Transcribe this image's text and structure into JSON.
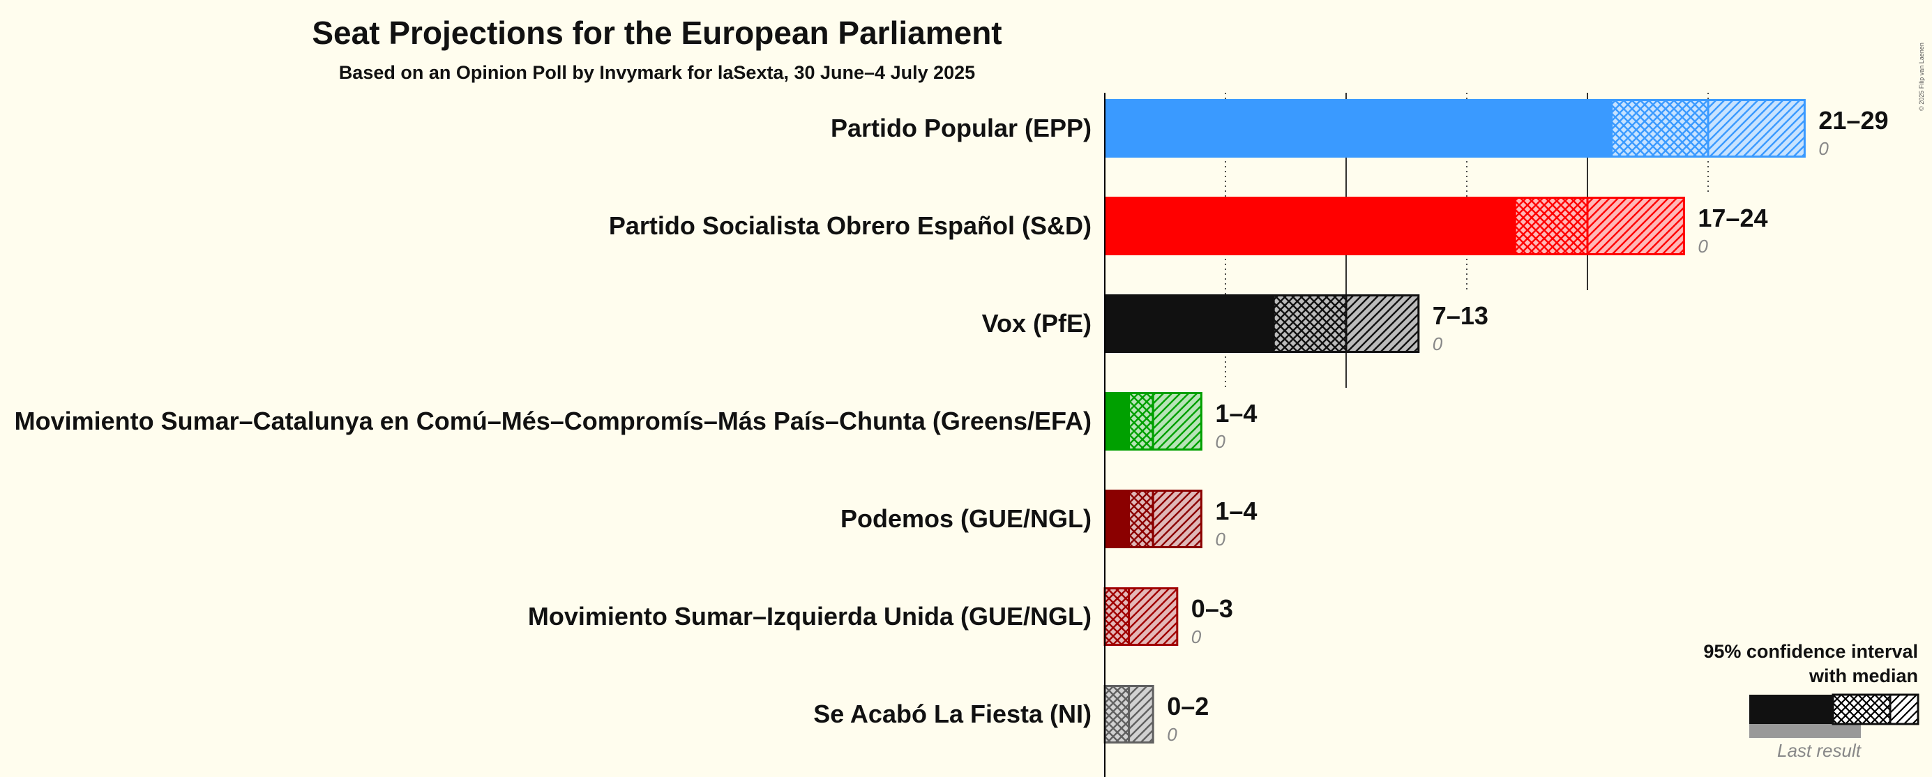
{
  "chart_data": {
    "type": "bar",
    "orientation": "horizontal",
    "title": "Seat Projections for the European Parliament",
    "subtitle": "Based on an Opinion Poll by Invymark for laSexta, 30 June–4 July 2025",
    "categories": [
      "Partido Popular (EPP)",
      "Partido Socialista Obrero Español (S&D)",
      "Vox (PfE)",
      "Movimiento Sumar–Catalunya en Comú–Més–Compromís–Más País–Chunta (Greens/EFA)",
      "Podemos (GUE/NGL)",
      "Movimiento Sumar–Izquierda Unida (GUE/NGL)",
      "Se Acabó La Fiesta (NI)"
    ],
    "series": [
      {
        "party": "Partido Popular (EPP)",
        "low": 21,
        "median": 25,
        "high": 29,
        "range_label": "21–29",
        "last_result": 0,
        "last_label": "0",
        "color": "#3A9AFF"
      },
      {
        "party": "Partido Socialista Obrero Español (S&D)",
        "low": 17,
        "median": 20,
        "high": 24,
        "range_label": "17–24",
        "last_result": 0,
        "last_label": "0",
        "color": "#FF0000"
      },
      {
        "party": "Vox (PfE)",
        "low": 7,
        "median": 10,
        "high": 13,
        "range_label": "7–13",
        "last_result": 0,
        "last_label": "0",
        "color": "#111111"
      },
      {
        "party": "Movimiento Sumar–Catalunya en Comú–Més–Compromís–Más País–Chunta (Greens/EFA)",
        "low": 1,
        "median": 2,
        "high": 4,
        "range_label": "1–4",
        "last_result": 0,
        "last_label": "0",
        "color": "#00A000"
      },
      {
        "party": "Podemos (GUE/NGL)",
        "low": 1,
        "median": 2,
        "high": 4,
        "range_label": "1–4",
        "last_result": 0,
        "last_label": "0",
        "color": "#8B0000"
      },
      {
        "party": "Movimiento Sumar–Izquierda Unida (GUE/NGL)",
        "low": 0,
        "median": 1,
        "high": 3,
        "range_label": "0–3",
        "last_result": 0,
        "last_label": "0",
        "color": "#A00000"
      },
      {
        "party": "Se Acabó La Fiesta (NI)",
        "low": 0,
        "median": 1,
        "high": 2,
        "range_label": "0–2",
        "last_result": 0,
        "last_label": "0",
        "color": "#606060"
      }
    ],
    "xlim": [
      0,
      29
    ],
    "grid": {
      "solid_every": 10,
      "dotted_every": 5
    },
    "legend": {
      "placement": "bottom-right",
      "line1": "95% confidence interval",
      "line2": "with median",
      "last_result_label": "Last result"
    }
  },
  "copyright": "© 2025 Filip van Laenen"
}
